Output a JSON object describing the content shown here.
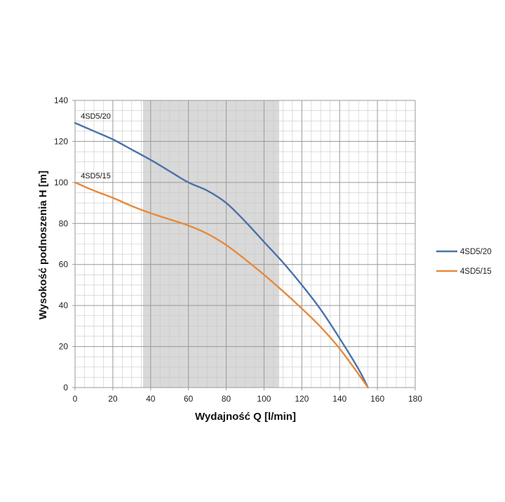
{
  "chart_data": {
    "type": "line",
    "xlabel": "Wydajność Q [l/min]",
    "ylabel": "Wysokość podnoszenia H [m]",
    "xlim": [
      0,
      180
    ],
    "ylim": [
      0,
      140
    ],
    "x_ticks": [
      0,
      20,
      40,
      60,
      80,
      100,
      120,
      140,
      160,
      180
    ],
    "y_ticks": [
      0,
      20,
      40,
      60,
      80,
      100,
      120,
      140
    ],
    "x_minor_step": 5,
    "y_minor_step": 5,
    "grid": true,
    "legend_position": "right",
    "shaded_band": {
      "x_start": 36,
      "x_end": 108,
      "color": "#d9d9d9"
    },
    "series": [
      {
        "name": "4SD5/20",
        "color": "#4a72a8",
        "x": [
          0,
          10,
          20,
          30,
          40,
          50,
          60,
          70,
          80,
          90,
          100,
          110,
          120,
          130,
          140,
          150,
          155
        ],
        "y": [
          129,
          125,
          121,
          116,
          111,
          105.5,
          100,
          96,
          90,
          81,
          71,
          61,
          50,
          38,
          24,
          9,
          0
        ]
      },
      {
        "name": "4SD5/15",
        "color": "#e8893a",
        "x": [
          0,
          10,
          20,
          30,
          40,
          50,
          60,
          70,
          80,
          90,
          100,
          110,
          120,
          130,
          140,
          150,
          155
        ],
        "y": [
          100,
          96,
          92.5,
          88.5,
          85,
          82,
          79,
          75,
          69.5,
          62.5,
          55,
          47,
          38.5,
          29.5,
          19,
          6.5,
          0
        ]
      }
    ]
  }
}
